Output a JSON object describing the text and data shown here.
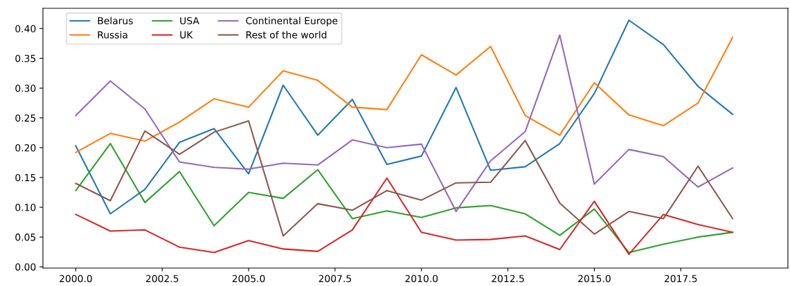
{
  "chart_data": {
    "type": "line",
    "x": [
      2000,
      2001,
      2002,
      2003,
      2004,
      2005,
      2006,
      2007,
      2008,
      2009,
      2010,
      2011,
      2012,
      2013,
      2014,
      2015,
      2016,
      2017,
      2018,
      2019
    ],
    "series": [
      {
        "name": "Belarus",
        "color": "#1f77b4",
        "values": [
          0.203,
          0.089,
          0.13,
          0.209,
          0.232,
          0.156,
          0.305,
          0.221,
          0.281,
          0.172,
          0.186,
          0.301,
          0.162,
          0.168,
          0.207,
          0.291,
          0.414,
          0.373,
          0.303,
          0.256
        ]
      },
      {
        "name": "Russia",
        "color": "#ff7f0e",
        "values": [
          0.192,
          0.224,
          0.211,
          0.243,
          0.282,
          0.268,
          0.329,
          0.313,
          0.268,
          0.264,
          0.356,
          0.322,
          0.37,
          0.254,
          0.221,
          0.309,
          0.255,
          0.237,
          0.275,
          0.385
        ]
      },
      {
        "name": "USA",
        "color": "#2ca02c",
        "values": [
          0.128,
          0.207,
          0.108,
          0.16,
          0.069,
          0.125,
          0.115,
          0.163,
          0.081,
          0.094,
          0.083,
          0.099,
          0.103,
          0.089,
          0.053,
          0.097,
          0.024,
          0.038,
          0.05,
          0.058
        ]
      },
      {
        "name": "UK",
        "color": "#d62728",
        "values": [
          0.088,
          0.06,
          0.062,
          0.033,
          0.024,
          0.044,
          0.03,
          0.026,
          0.062,
          0.149,
          0.058,
          0.045,
          0.046,
          0.052,
          0.029,
          0.11,
          0.021,
          0.088,
          0.071,
          0.058
        ]
      },
      {
        "name": "Continental Europe",
        "color": "#9467bd",
        "values": [
          0.254,
          0.312,
          0.265,
          0.176,
          0.167,
          0.164,
          0.174,
          0.171,
          0.213,
          0.2,
          0.206,
          0.093,
          0.178,
          0.227,
          0.389,
          0.139,
          0.197,
          0.185,
          0.134,
          0.166
        ]
      },
      {
        "name": "Rest of the world",
        "color": "#8c564b",
        "values": [
          0.14,
          0.111,
          0.228,
          0.189,
          0.226,
          0.245,
          0.052,
          0.106,
          0.095,
          0.128,
          0.112,
          0.141,
          0.142,
          0.212,
          0.107,
          0.055,
          0.093,
          0.081,
          0.169,
          0.081
        ]
      }
    ],
    "xlim": [
      1999.05,
      2020.6
    ],
    "xticks": [
      {
        "value": 2000,
        "label": "2000.0"
      },
      {
        "value": 2002.5,
        "label": "2002.5"
      },
      {
        "value": 2005,
        "label": "2005.0"
      },
      {
        "value": 2007.5,
        "label": "2007.5"
      },
      {
        "value": 2010,
        "label": "2010.0"
      },
      {
        "value": 2012.5,
        "label": "2012.5"
      },
      {
        "value": 2015,
        "label": "2015.0"
      },
      {
        "value": 2017.5,
        "label": "2017.5"
      }
    ],
    "ylim": [
      -0.002,
      0.434
    ],
    "yticks": [
      {
        "value": 0,
        "label": "0.00"
      },
      {
        "value": 0.05,
        "label": "0.05"
      },
      {
        "value": 0.1,
        "label": "0.10"
      },
      {
        "value": 0.15,
        "label": "0.15"
      },
      {
        "value": 0.2,
        "label": "0.20"
      },
      {
        "value": 0.25,
        "label": "0.25"
      },
      {
        "value": 0.3,
        "label": "0.30"
      },
      {
        "value": 0.35,
        "label": "0.35"
      },
      {
        "value": 0.4,
        "label": "0.40"
      }
    ],
    "legend": "top left",
    "grid": false,
    "marker": "none",
    "line_style": "solid"
  }
}
